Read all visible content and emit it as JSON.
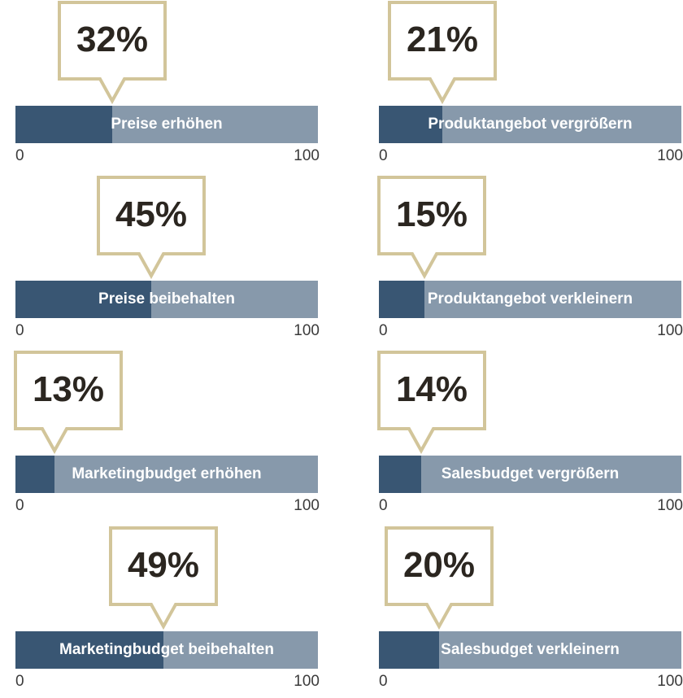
{
  "colors": {
    "fill": "#395673",
    "track": "#8799ab",
    "callout_border": "#d2c59a",
    "text": "#2b2620"
  },
  "chart_data": {
    "type": "bar",
    "orientation": "horizontal",
    "range": [
      0,
      100
    ],
    "tick_min_label": "0",
    "tick_max_label": "100",
    "items": [
      {
        "label": "Preise erhöhen",
        "value": 32,
        "value_label": "32%"
      },
      {
        "label": "Produktangebot vergrößern",
        "value": 21,
        "value_label": "21%"
      },
      {
        "label": "Preise beibehalten",
        "value": 45,
        "value_label": "45%"
      },
      {
        "label": "Produktangebot verkleinern",
        "value": 15,
        "value_label": "15%"
      },
      {
        "label": "Marketingbudget erhöhen",
        "value": 13,
        "value_label": "13%"
      },
      {
        "label": "Salesbudget vergrößern",
        "value": 14,
        "value_label": "14%"
      },
      {
        "label": "Marketingbudget beibehalten",
        "value": 49,
        "value_label": "49%"
      },
      {
        "label": "Salesbudget verkleinern",
        "value": 20,
        "value_label": "20%"
      }
    ]
  }
}
